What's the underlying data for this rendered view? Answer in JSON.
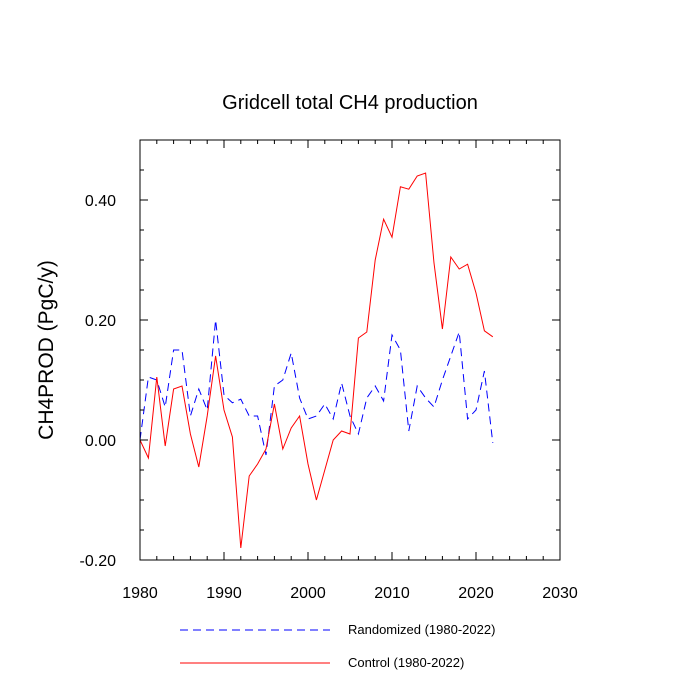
{
  "chart_data": {
    "type": "line",
    "title": "Gridcell total CH4 production",
    "xlabel": "",
    "ylabel": "CH4PROD  (PgC/y)",
    "xlim": [
      1980,
      2030
    ],
    "ylim": [
      -0.2,
      0.5
    ],
    "x_ticks": [
      1980,
      1990,
      2000,
      2010,
      2020,
      2030
    ],
    "x_tick_labels": [
      "1980",
      "1990",
      "2000",
      "2010",
      "2020",
      "2030"
    ],
    "y_ticks": [
      -0.2,
      0.0,
      0.2,
      0.4
    ],
    "y_tick_labels": [
      "-0.20",
      "0.00",
      "0.20",
      "0.40"
    ],
    "legend_position": "bottom",
    "series": [
      {
        "name": "Randomized (1980-2022)",
        "color": "#0000ff",
        "style": "dashed",
        "x": [
          1980,
          1981,
          1982,
          1983,
          1984,
          1985,
          1986,
          1987,
          1988,
          1989,
          1990,
          1991,
          1992,
          1993,
          1994,
          1995,
          1996,
          1997,
          1998,
          1999,
          2000,
          2001,
          2002,
          2003,
          2004,
          2005,
          2006,
          2007,
          2008,
          2009,
          2010,
          2011,
          2012,
          2013,
          2014,
          2015,
          2016,
          2017,
          2018,
          2019,
          2020,
          2021,
          2022
        ],
        "values": [
          0.0,
          0.105,
          0.1,
          0.055,
          0.15,
          0.15,
          0.04,
          0.085,
          0.05,
          0.2,
          0.075,
          0.062,
          0.068,
          0.04,
          0.04,
          -0.025,
          0.09,
          0.1,
          0.145,
          0.07,
          0.035,
          0.04,
          0.06,
          0.035,
          0.095,
          0.04,
          0.01,
          0.07,
          0.09,
          0.065,
          0.175,
          0.15,
          0.015,
          0.09,
          0.07,
          0.055,
          0.1,
          0.14,
          0.18,
          0.035,
          0.05,
          0.115,
          -0.005
        ]
      },
      {
        "name": "Control (1980-2022)",
        "color": "#ff0000",
        "style": "solid",
        "x": [
          1980,
          1981,
          1982,
          1983,
          1984,
          1985,
          1986,
          1987,
          1988,
          1989,
          1990,
          1991,
          1992,
          1993,
          1994,
          1995,
          1996,
          1997,
          1998,
          1999,
          2000,
          2001,
          2002,
          2003,
          2004,
          2005,
          2006,
          2007,
          2008,
          2009,
          2010,
          2011,
          2012,
          2013,
          2014,
          2015,
          2016,
          2017,
          2018,
          2019,
          2020,
          2021,
          2022
        ],
        "values": [
          0.0,
          -0.03,
          0.105,
          -0.01,
          0.085,
          0.09,
          0.01,
          -0.045,
          0.04,
          0.14,
          0.05,
          0.005,
          -0.18,
          -0.06,
          -0.04,
          -0.015,
          0.06,
          -0.015,
          0.02,
          0.04,
          -0.04,
          -0.1,
          -0.05,
          0.0,
          0.015,
          0.01,
          0.17,
          0.18,
          0.3,
          0.368,
          0.338,
          0.422,
          0.418,
          0.44,
          0.445,
          0.295,
          0.185,
          0.305,
          0.285,
          0.293,
          0.245,
          0.182,
          0.172
        ]
      }
    ]
  }
}
